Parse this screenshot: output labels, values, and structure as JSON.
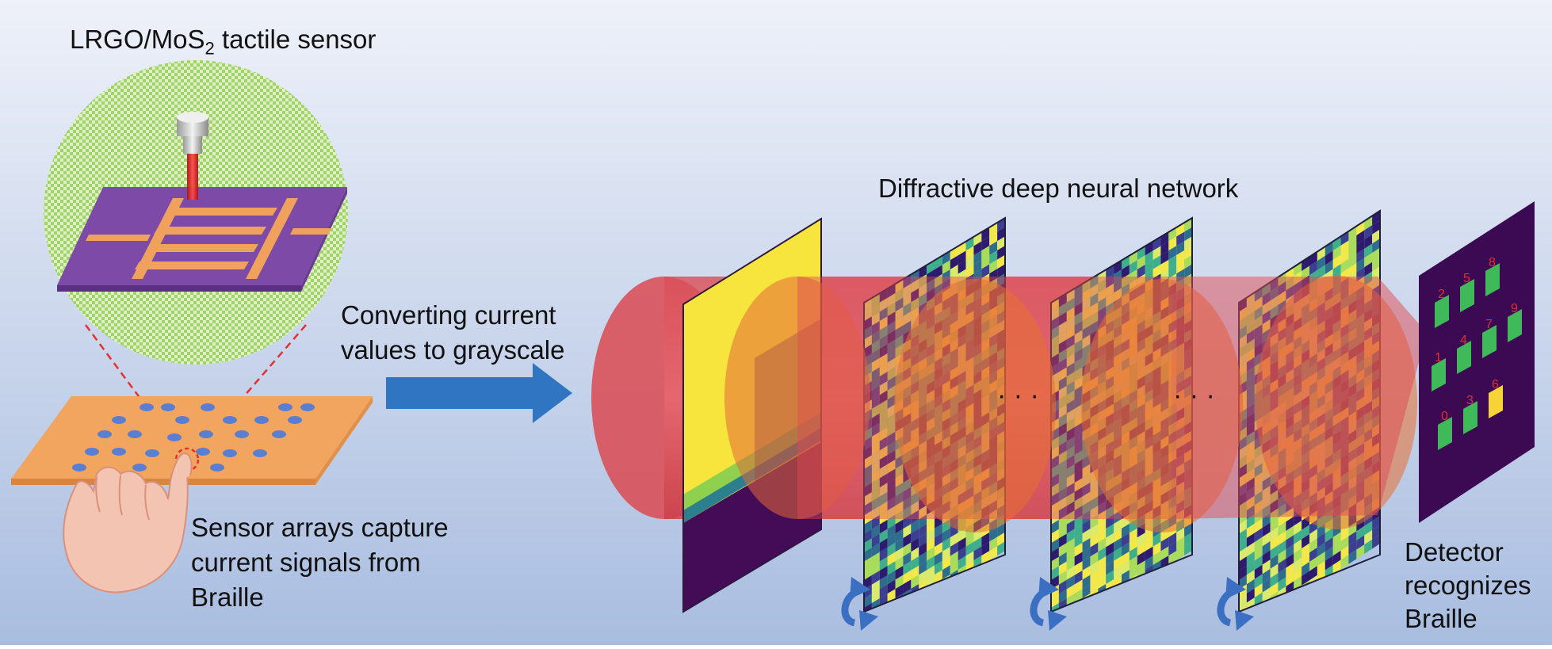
{
  "labels": {
    "sensor_prefix": "LRGO/MoS",
    "sensor_sub": "2",
    "sensor_suffix": " tactile sensor",
    "converting_line1": "Converting current",
    "converting_line2": "values to grayscale",
    "network_title": "Diffractive deep neural network",
    "capture_line1": "Sensor arrays capture",
    "capture_line2": "current signals from",
    "capture_line3": "Braille",
    "detector_line1": "Detector",
    "detector_line2": "recognizes",
    "detector_line3": "Braille",
    "ellipsis": "· · ·"
  },
  "detector_digits": [
    "2",
    "5",
    "8",
    "1",
    "4",
    "7",
    "9",
    "0",
    "3",
    "6"
  ],
  "colors": {
    "background_top": "#eef1f9",
    "background_bottom": "#a9bde0",
    "beam": "#e05a62",
    "arrow": "#2f75c1",
    "substrate": "#f2a55f",
    "electrode_base": "#8b4fb3",
    "detector_bg": "#3b0a52",
    "detector_cell": "#3fb95a",
    "detector_active": "#f5d43a",
    "rotate_arrow": "#3b6fc1"
  }
}
